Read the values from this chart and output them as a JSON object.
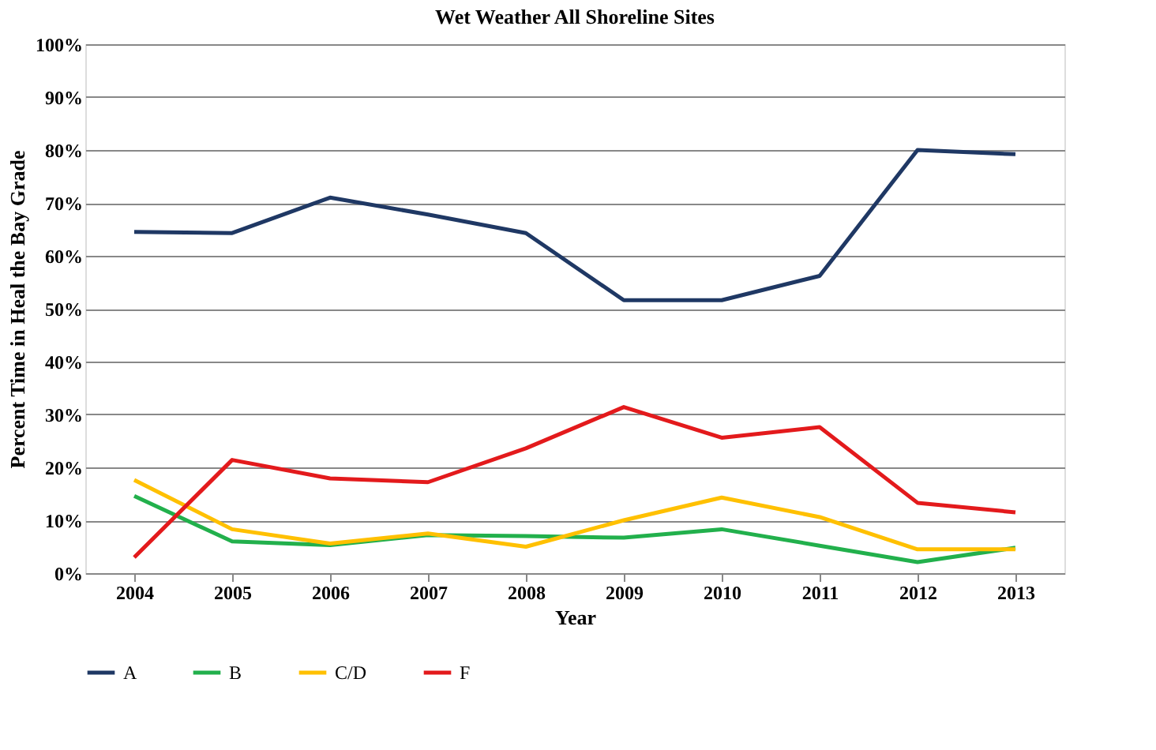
{
  "chart_data": {
    "type": "line",
    "title": "Wet Weather All Shoreline Sites",
    "xlabel": "Year",
    "ylabel": "Percent Time in Heal the Bay Grade",
    "categories": [
      "2004",
      "2005",
      "2006",
      "2007",
      "2008",
      "2009",
      "2010",
      "2011",
      "2012",
      "2013"
    ],
    "series": [
      {
        "name": "A",
        "color": "#1f3864",
        "values": [
          64.5,
          64.3,
          71,
          67.8,
          64.3,
          51.6,
          51.6,
          56.2,
          80,
          79.2
        ]
      },
      {
        "name": "B",
        "color": "#22b04c",
        "values": [
          14.6,
          6,
          5.3,
          7.2,
          7,
          6.7,
          8.3,
          5.2,
          2.1,
          4.8
        ]
      },
      {
        "name": "C/D",
        "color": "#ffc000",
        "values": [
          17.6,
          8.3,
          5.6,
          7.5,
          5,
          10,
          14.3,
          10.6,
          4.5,
          4.5
        ]
      },
      {
        "name": "F",
        "color": "#e31a1c",
        "values": [
          3,
          21.4,
          17.9,
          17.2,
          23.6,
          31.4,
          25.6,
          27.6,
          13.3,
          11.5
        ]
      }
    ],
    "ylim": [
      0,
      100
    ],
    "yticks": [
      {
        "value": 0,
        "label": "0%"
      },
      {
        "value": 10,
        "label": "10%"
      },
      {
        "value": 20,
        "label": "20%"
      },
      {
        "value": 30,
        "label": "30%"
      },
      {
        "value": 40,
        "label": "40%"
      },
      {
        "value": 50,
        "label": "50%"
      },
      {
        "value": 60,
        "label": "60%"
      },
      {
        "value": 70,
        "label": "70%"
      },
      {
        "value": 80,
        "label": "80%"
      },
      {
        "value": 90,
        "label": "90%"
      },
      {
        "value": 100,
        "label": "100%"
      }
    ],
    "grid": "y",
    "legend": "bottom",
    "marker": "none",
    "line_style": "solid"
  }
}
